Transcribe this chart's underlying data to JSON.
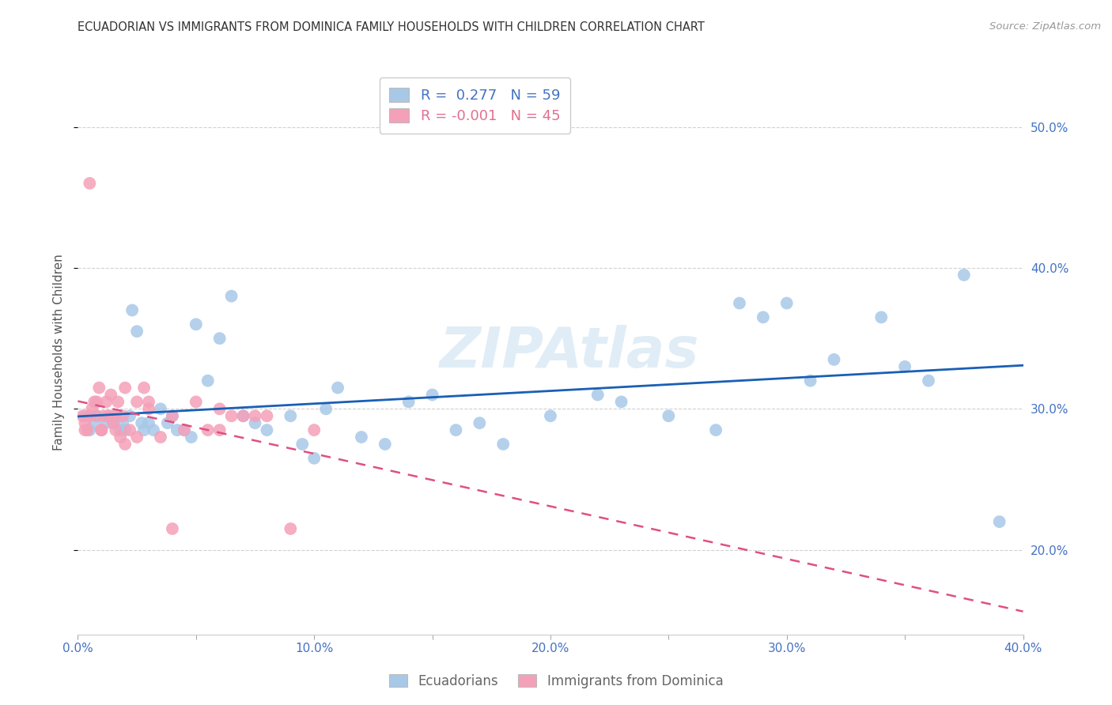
{
  "title": "ECUADORIAN VS IMMIGRANTS FROM DOMINICA FAMILY HOUSEHOLDS WITH CHILDREN CORRELATION CHART",
  "source": "Source: ZipAtlas.com",
  "ylabel": "Family Households with Children",
  "xlim": [
    0.0,
    0.4
  ],
  "ylim": [
    0.14,
    0.54
  ],
  "xticks": [
    0.0,
    0.05,
    0.1,
    0.15,
    0.2,
    0.25,
    0.3,
    0.35,
    0.4
  ],
  "yticks": [
    0.2,
    0.3,
    0.4,
    0.5
  ],
  "ytick_labels": [
    "20.0%",
    "30.0%",
    "40.0%",
    "50.0%"
  ],
  "xtick_labels": [
    "0.0%",
    "",
    "10.0%",
    "",
    "20.0%",
    "",
    "30.0%",
    "",
    "40.0%"
  ],
  "blue_R": 0.277,
  "blue_N": 59,
  "pink_R": -0.001,
  "pink_N": 45,
  "blue_color": "#a8c8e8",
  "pink_color": "#f4a0b8",
  "blue_line_color": "#1a5fb4",
  "pink_line_color": "#e05080",
  "watermark": "ZIPAtlas",
  "blue_scatter_x": [
    0.003,
    0.005,
    0.007,
    0.008,
    0.01,
    0.012,
    0.013,
    0.015,
    0.016,
    0.018,
    0.019,
    0.02,
    0.022,
    0.023,
    0.025,
    0.027,
    0.028,
    0.03,
    0.032,
    0.035,
    0.038,
    0.04,
    0.042,
    0.045,
    0.048,
    0.05,
    0.055,
    0.06,
    0.065,
    0.07,
    0.075,
    0.08,
    0.09,
    0.095,
    0.1,
    0.105,
    0.11,
    0.12,
    0.13,
    0.14,
    0.15,
    0.16,
    0.17,
    0.18,
    0.2,
    0.22,
    0.23,
    0.25,
    0.27,
    0.28,
    0.29,
    0.3,
    0.31,
    0.32,
    0.34,
    0.35,
    0.36,
    0.375,
    0.39
  ],
  "blue_scatter_y": [
    0.295,
    0.285,
    0.29,
    0.295,
    0.285,
    0.29,
    0.295,
    0.29,
    0.295,
    0.285,
    0.29,
    0.285,
    0.295,
    0.37,
    0.355,
    0.29,
    0.285,
    0.29,
    0.285,
    0.3,
    0.29,
    0.295,
    0.285,
    0.285,
    0.28,
    0.36,
    0.32,
    0.35,
    0.38,
    0.295,
    0.29,
    0.285,
    0.295,
    0.275,
    0.265,
    0.3,
    0.315,
    0.28,
    0.275,
    0.305,
    0.31,
    0.285,
    0.29,
    0.275,
    0.295,
    0.31,
    0.305,
    0.295,
    0.285,
    0.375,
    0.365,
    0.375,
    0.32,
    0.335,
    0.365,
    0.33,
    0.32,
    0.395,
    0.22
  ],
  "pink_scatter_x": [
    0.002,
    0.003,
    0.004,
    0.005,
    0.006,
    0.007,
    0.008,
    0.009,
    0.01,
    0.011,
    0.012,
    0.013,
    0.014,
    0.015,
    0.016,
    0.017,
    0.018,
    0.019,
    0.02,
    0.022,
    0.025,
    0.028,
    0.03,
    0.035,
    0.04,
    0.045,
    0.05,
    0.055,
    0.06,
    0.065,
    0.07,
    0.075,
    0.08,
    0.09,
    0.1,
    0.003,
    0.005,
    0.008,
    0.01,
    0.015,
    0.02,
    0.025,
    0.03,
    0.04,
    0.06
  ],
  "pink_scatter_y": [
    0.295,
    0.29,
    0.285,
    0.46,
    0.3,
    0.305,
    0.295,
    0.315,
    0.285,
    0.295,
    0.305,
    0.295,
    0.31,
    0.29,
    0.285,
    0.305,
    0.28,
    0.295,
    0.275,
    0.285,
    0.28,
    0.315,
    0.3,
    0.28,
    0.295,
    0.285,
    0.305,
    0.285,
    0.3,
    0.295,
    0.295,
    0.295,
    0.295,
    0.215,
    0.285,
    0.285,
    0.295,
    0.305,
    0.285,
    0.295,
    0.315,
    0.305,
    0.305,
    0.215,
    0.285
  ]
}
